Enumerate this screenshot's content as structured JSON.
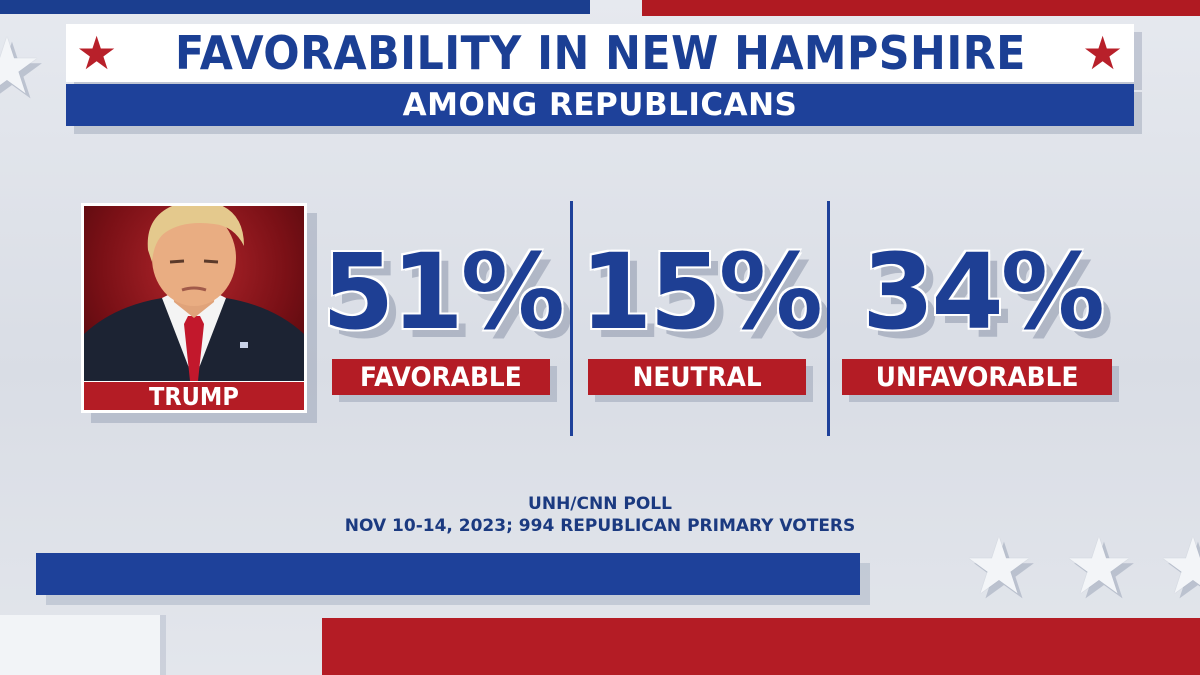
{
  "header": {
    "title": "FAVORABILITY IN NEW HAMPSHIRE",
    "subtitle": "AMONG REPUBLICANS"
  },
  "candidate": {
    "name": "TRUMP"
  },
  "stats": [
    {
      "value": "51%",
      "label": "FAVORABLE"
    },
    {
      "value": "15%",
      "label": "NEUTRAL"
    },
    {
      "value": "34%",
      "label": "UNFAVORABLE"
    }
  ],
  "source": {
    "line1": "UNH/CNN POLL",
    "line2": "NOV 10-14, 2023; 994 REPUBLICAN PRIMARY VOTERS"
  },
  "colors": {
    "blue": "#1e419a",
    "red": "#b41c25",
    "background": "#e2e5eb"
  },
  "chart_data": {
    "type": "table",
    "title": "FAVORABILITY IN NEW HAMPSHIRE",
    "subtitle": "AMONG REPUBLICANS",
    "categories": [
      "FAVORABLE",
      "NEUTRAL",
      "UNFAVORABLE"
    ],
    "series": [
      {
        "name": "TRUMP",
        "values": [
          51,
          15,
          34
        ]
      }
    ],
    "unit": "%"
  }
}
